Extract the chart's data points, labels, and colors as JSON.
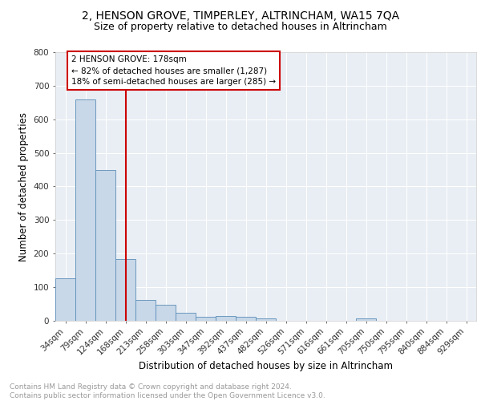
{
  "title1": "2, HENSON GROVE, TIMPERLEY, ALTRINCHAM, WA15 7QA",
  "title2": "Size of property relative to detached houses in Altrincham",
  "xlabel": "Distribution of detached houses by size in Altrincham",
  "ylabel": "Number of detached properties",
  "categories": [
    "34sqm",
    "79sqm",
    "124sqm",
    "168sqm",
    "213sqm",
    "258sqm",
    "303sqm",
    "347sqm",
    "392sqm",
    "437sqm",
    "482sqm",
    "526sqm",
    "571sqm",
    "616sqm",
    "661sqm",
    "705sqm",
    "750sqm",
    "795sqm",
    "840sqm",
    "884sqm",
    "929sqm"
  ],
  "values": [
    127,
    660,
    450,
    183,
    62,
    47,
    25,
    11,
    15,
    12,
    7,
    0,
    0,
    0,
    0,
    8,
    0,
    0,
    0,
    0,
    0
  ],
  "bar_color": "#c8d8e8",
  "bar_edge_color": "#5b8db8",
  "vline_x": 3.0,
  "vline_color": "#cc0000",
  "annotation_text": "2 HENSON GROVE: 178sqm\n← 82% of detached houses are smaller (1,287)\n18% of semi-detached houses are larger (285) →",
  "annotation_box_color": "#ffffff",
  "annotation_box_edge": "#cc0000",
  "ylim": [
    0,
    800
  ],
  "yticks": [
    0,
    100,
    200,
    300,
    400,
    500,
    600,
    700,
    800
  ],
  "footer_text": "Contains HM Land Registry data © Crown copyright and database right 2024.\nContains public sector information licensed under the Open Government Licence v3.0.",
  "bg_color": "#e8eef4",
  "title1_fontsize": 10,
  "title2_fontsize": 9,
  "tick_fontsize": 7.5,
  "ylabel_fontsize": 8.5,
  "xlabel_fontsize": 8.5,
  "footer_fontsize": 6.5
}
